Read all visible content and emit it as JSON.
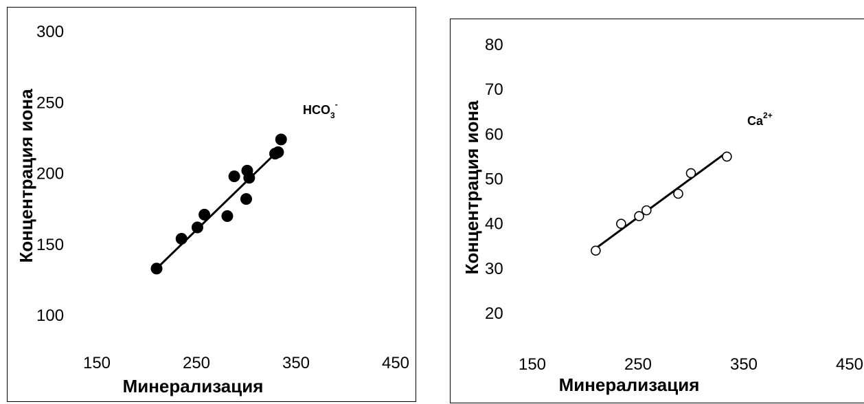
{
  "chart_data": [
    {
      "type": "scatter",
      "xlabel": "Минерализация",
      "ylabel": "Концентрация иона",
      "xlim": [
        150,
        450
      ],
      "ylim": [
        100,
        300
      ],
      "xticks": [
        "150",
        "250",
        "350",
        "450"
      ],
      "yticks": [
        "100",
        "150",
        "200",
        "250",
        "300"
      ],
      "annotation": {
        "base": "HCO",
        "sub": "3",
        "sup": "-"
      },
      "marker": "filled-circle",
      "points": [
        {
          "x": 210,
          "y": 133
        },
        {
          "x": 235,
          "y": 154
        },
        {
          "x": 251,
          "y": 162
        },
        {
          "x": 258,
          "y": 171
        },
        {
          "x": 281,
          "y": 170
        },
        {
          "x": 288,
          "y": 198
        },
        {
          "x": 300,
          "y": 182
        },
        {
          "x": 301,
          "y": 202
        },
        {
          "x": 303,
          "y": 197
        },
        {
          "x": 329,
          "y": 214
        },
        {
          "x": 332,
          "y": 215
        },
        {
          "x": 335,
          "y": 224
        }
      ],
      "trendline": [
        [
          210,
          133
        ],
        [
          335,
          218
        ]
      ]
    },
    {
      "type": "scatter",
      "xlabel": "Минерализация",
      "ylabel": "Концентрация иона",
      "xlim": [
        150,
        450
      ],
      "ylim": [
        20,
        80
      ],
      "xticks": [
        "150",
        "250",
        "350",
        "450"
      ],
      "yticks": [
        "20",
        "30",
        "40",
        "50",
        "60",
        "70",
        "80"
      ],
      "annotation": {
        "base": "Ca",
        "sub": "",
        "sup": "2+"
      },
      "marker": "open-circle",
      "points": [
        {
          "x": 210,
          "y": 34
        },
        {
          "x": 234,
          "y": 40
        },
        {
          "x": 251,
          "y": 41.7
        },
        {
          "x": 258,
          "y": 43
        },
        {
          "x": 288,
          "y": 46.7
        },
        {
          "x": 300,
          "y": 51.3
        },
        {
          "x": 334,
          "y": 55
        }
      ],
      "trendline": [
        [
          210,
          34.5
        ],
        [
          334,
          56
        ]
      ]
    }
  ]
}
